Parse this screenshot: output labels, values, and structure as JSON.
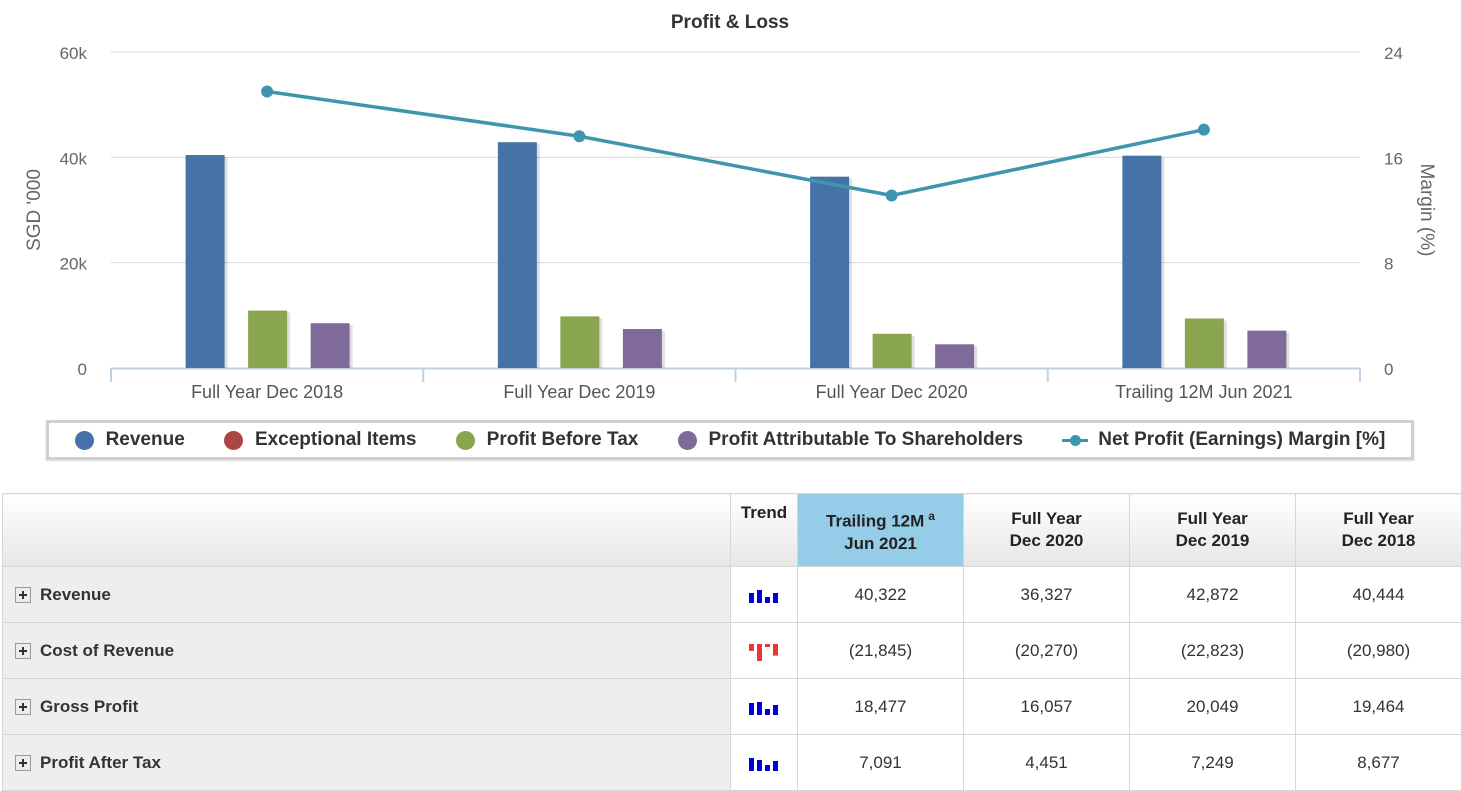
{
  "chart_data": {
    "type": "bar",
    "title": "Profit & Loss",
    "categories": [
      "Full Year Dec 2018",
      "Full Year Dec 2019",
      "Full Year Dec 2020",
      "Trailing 12M Jun 2021"
    ],
    "ylabel": "SGD '000",
    "y2label": "Margin (%)",
    "ylim": [
      0,
      60000
    ],
    "y2lim": [
      0,
      24
    ],
    "yticks": [
      "0",
      "20k",
      "40k",
      "60k"
    ],
    "y2ticks": [
      "0",
      "8",
      "16",
      "24"
    ],
    "grid": true,
    "legend_position": "bottom",
    "series": [
      {
        "name": "Revenue",
        "type": "bar",
        "color": "#4572a7",
        "values": [
          40444,
          42872,
          36327,
          40322
        ]
      },
      {
        "name": "Exceptional Items",
        "type": "bar",
        "color": "#aa4643",
        "values": [
          0,
          0,
          0,
          0
        ]
      },
      {
        "name": "Profit Before Tax",
        "type": "bar",
        "color": "#89a54e",
        "values": [
          10900,
          9800,
          6500,
          9400
        ]
      },
      {
        "name": "Profit Attributable To Shareholders",
        "type": "bar",
        "color": "#80699b",
        "values": [
          8500,
          7400,
          4500,
          7100
        ]
      },
      {
        "name": "Net Profit (Earnings) Margin [%]",
        "type": "line",
        "axis": "right",
        "color": "#3d96ae",
        "values": [
          21.0,
          17.6,
          13.1,
          18.1
        ]
      }
    ]
  },
  "table": {
    "header": {
      "trend": "Trend",
      "columns": [
        {
          "line1": "Trailing 12M",
          "sup": "a",
          "line2": "Jun 2021",
          "selected": true
        },
        {
          "line1": "Full Year",
          "sup": "",
          "line2": "Dec 2020",
          "selected": false
        },
        {
          "line1": "Full Year",
          "sup": "",
          "line2": "Dec 2019",
          "selected": false
        },
        {
          "line1": "Full Year",
          "sup": "",
          "line2": "Dec 2018",
          "selected": false
        }
      ]
    },
    "rows": [
      {
        "label": "Revenue",
        "trend": {
          "color": "#0000dd",
          "values": [
            40444,
            42872,
            36327,
            40322
          ]
        },
        "values": [
          "40,322",
          "36,327",
          "42,872",
          "40,444"
        ]
      },
      {
        "label": "Cost of Revenue",
        "trend": {
          "color": "#ee3333",
          "values": [
            -20980,
            -22823,
            -20270,
            -21845
          ]
        },
        "values": [
          "(21,845)",
          "(20,270)",
          "(22,823)",
          "(20,980)"
        ]
      },
      {
        "label": "Gross Profit",
        "trend": {
          "color": "#0000dd",
          "values": [
            19464,
            20049,
            16057,
            18477
          ]
        },
        "values": [
          "18,477",
          "16,057",
          "20,049",
          "19,464"
        ]
      },
      {
        "label": "Profit After Tax",
        "trend": {
          "color": "#0000dd",
          "values": [
            8677,
            7249,
            4451,
            7091
          ]
        },
        "values": [
          "7,091",
          "4,451",
          "7,249",
          "8,677"
        ]
      }
    ]
  }
}
